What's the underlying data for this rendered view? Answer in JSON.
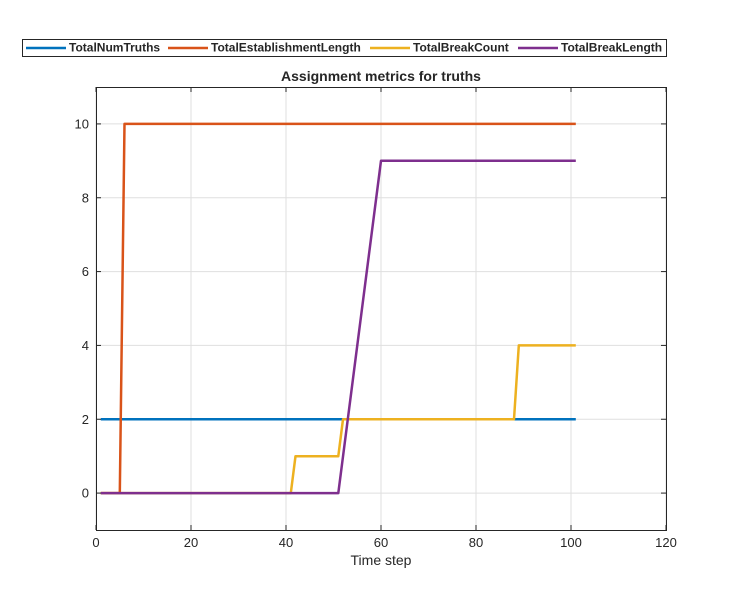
{
  "chart_data": {
    "type": "line",
    "title": "Assignment metrics for truths",
    "xlabel": "Time step",
    "ylabel": "",
    "xlim": [
      0,
      120
    ],
    "ylim": [
      -1,
      11
    ],
    "xticks": [
      0,
      20,
      40,
      60,
      80,
      100,
      120
    ],
    "yticks": [
      0,
      2,
      4,
      6,
      8,
      10
    ],
    "grid": true,
    "legend_position": "top-horizontal",
    "series": [
      {
        "name": "TotalNumTruths",
        "color": "#0072BD",
        "points": [
          [
            1,
            2
          ],
          [
            101,
            2
          ]
        ]
      },
      {
        "name": "TotalEstablishmentLength",
        "color": "#D95319",
        "points": [
          [
            1,
            0
          ],
          [
            5,
            0
          ],
          [
            6,
            10
          ],
          [
            101,
            10
          ]
        ]
      },
      {
        "name": "TotalBreakCount",
        "color": "#EDB120",
        "points": [
          [
            1,
            0
          ],
          [
            41,
            0
          ],
          [
            42,
            1
          ],
          [
            51,
            1
          ],
          [
            52,
            2
          ],
          [
            88,
            2
          ],
          [
            89,
            4
          ],
          [
            101,
            4
          ]
        ]
      },
      {
        "name": "TotalBreakLength",
        "color": "#7E2F8E",
        "points": [
          [
            1,
            0
          ],
          [
            51,
            0
          ],
          [
            60,
            9
          ],
          [
            101,
            9
          ]
        ]
      }
    ]
  }
}
